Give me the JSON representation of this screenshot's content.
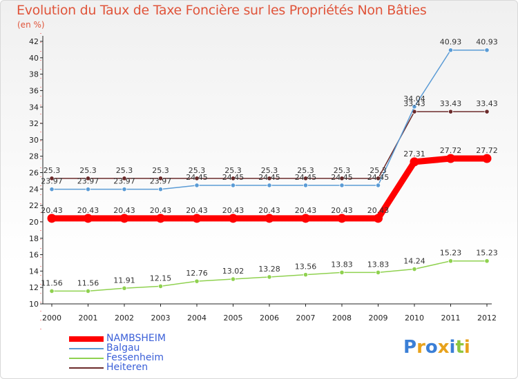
{
  "chart_data": {
    "type": "line",
    "title": "Evolution du Taux de Taxe Foncière sur les Propriétés Non Bâties",
    "ylabel": "(en %)",
    "xlabel": "",
    "ylim": [
      10,
      42
    ],
    "yticks": [
      10,
      12,
      14,
      16,
      18,
      20,
      22,
      24,
      26,
      28,
      30,
      32,
      34,
      36,
      38,
      40,
      42
    ],
    "categories": [
      "2000",
      "2001",
      "2002",
      "2003",
      "2004",
      "2005",
      "2006",
      "2007",
      "2008",
      "2009",
      "2010",
      "2011",
      "2012"
    ],
    "series": [
      {
        "name": "Heiteren",
        "color": "#6b2a2a",
        "values": [
          25.3,
          25.3,
          25.3,
          25.3,
          25.3,
          25.3,
          25.3,
          25.3,
          25.3,
          25.3,
          33.43,
          33.43,
          33.43
        ],
        "labels": [
          "25.3",
          "25.3",
          "25.3",
          "25.3",
          "25.3",
          "25.3",
          "25.3",
          "25.3",
          "25.3",
          "25.3",
          "33.43",
          "33.43",
          "33.43"
        ]
      },
      {
        "name": "Balgau",
        "color": "#5a9bd5",
        "values": [
          23.97,
          23.97,
          23.97,
          23.97,
          24.45,
          24.45,
          24.45,
          24.45,
          24.45,
          24.45,
          34.04,
          40.93,
          40.93
        ],
        "labels": [
          "23.97",
          "23.97",
          "23.97",
          "23.97",
          "24.45",
          "24.45",
          "24.45",
          "24.45",
          "24.45",
          "24.45",
          "34.04",
          "40.93",
          "40.93"
        ]
      },
      {
        "name": "Fessenheim",
        "color": "#8fd14f",
        "values": [
          11.56,
          11.56,
          11.91,
          12.15,
          12.76,
          13.02,
          13.28,
          13.56,
          13.83,
          13.83,
          14.24,
          15.23,
          15.23
        ],
        "labels": [
          "11.56",
          "11.56",
          "11.91",
          "12.15",
          "12.76",
          "13.02",
          "13.28",
          "13.56",
          "13.83",
          "13.83",
          "14.24",
          "15.23",
          "15.23"
        ]
      },
      {
        "name": "NAMBSHEIM",
        "color": "#ff0000",
        "values": [
          20.43,
          20.43,
          20.43,
          20.43,
          20.43,
          20.43,
          20.43,
          20.43,
          20.43,
          20.43,
          27.31,
          27.72,
          27.72
        ],
        "labels": [
          "20.43",
          "20.43",
          "20.43",
          "20.43",
          "20.43",
          "20.43",
          "20.43",
          "20.43",
          "20.43",
          "20.43",
          "27.31",
          "27.72",
          "27.72"
        ]
      }
    ],
    "legend": [
      "NAMBSHEIM",
      "Balgau",
      "Fessenheim",
      "Heiteren"
    ],
    "legend_position": "bottom-left",
    "grid": false
  },
  "logo": {
    "letters": [
      "P",
      "r",
      "o",
      "x",
      "i",
      "t",
      "i"
    ],
    "colors": [
      "#3b7fd6",
      "#e8a21c",
      "#3b7fd6",
      "#e8a21c",
      "#3b7fd6",
      "#8dc63f",
      "#e8a21c"
    ]
  }
}
